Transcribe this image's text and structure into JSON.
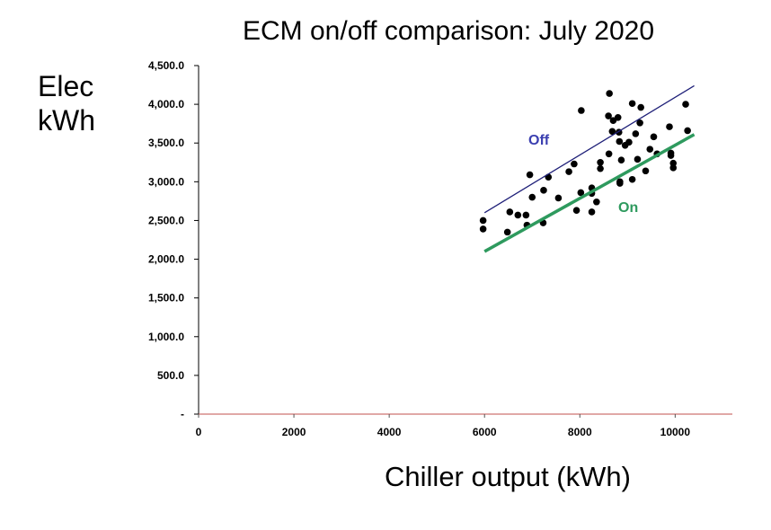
{
  "chart_data": {
    "type": "scatter",
    "title": "ECM on/off comparison: July 2020",
    "ylabel_lines": [
      "Elec",
      "kWh"
    ],
    "xlabel": "Chiller output (kWh)",
    "xlim": [
      0,
      11200
    ],
    "ylim": [
      0,
      4500
    ],
    "x_ticks": [
      0,
      2000,
      4000,
      6000,
      8000,
      10000
    ],
    "x_tick_labels": [
      "0",
      "2000",
      "4000",
      "6000",
      "8000",
      "10000"
    ],
    "y_ticks": [
      0,
      500,
      1000,
      1500,
      2000,
      2500,
      3000,
      3500,
      4000,
      4500
    ],
    "y_tick_labels": [
      "-",
      "500.0",
      "1,000.0",
      "1,500.0",
      "2,000.0",
      "2,500.0",
      "3,000.0",
      "3,500.0",
      "4,000.0",
      "4,500.0"
    ],
    "grid": false,
    "points": [
      [
        5970,
        2500
      ],
      [
        5970,
        2390
      ],
      [
        6480,
        2350
      ],
      [
        6530,
        2610
      ],
      [
        6700,
        2570
      ],
      [
        6870,
        2570
      ],
      [
        6890,
        2440
      ],
      [
        6950,
        3090
      ],
      [
        7000,
        2800
      ],
      [
        7230,
        2470
      ],
      [
        7240,
        2890
      ],
      [
        7340,
        3060
      ],
      [
        7550,
        2790
      ],
      [
        7770,
        3130
      ],
      [
        7880,
        3230
      ],
      [
        7930,
        2630
      ],
      [
        8020,
        2860
      ],
      [
        8030,
        3920
      ],
      [
        8250,
        2850
      ],
      [
        8250,
        2920
      ],
      [
        8250,
        2610
      ],
      [
        8350,
        2740
      ],
      [
        8430,
        3170
      ],
      [
        8430,
        3250
      ],
      [
        8600,
        3850
      ],
      [
        8610,
        3360
      ],
      [
        8620,
        4140
      ],
      [
        8680,
        3650
      ],
      [
        8700,
        3790
      ],
      [
        8800,
        3830
      ],
      [
        8820,
        3640
      ],
      [
        8830,
        3520
      ],
      [
        8840,
        2980
      ],
      [
        8840,
        3000
      ],
      [
        8870,
        3280
      ],
      [
        8950,
        3470
      ],
      [
        9030,
        3510
      ],
      [
        9100,
        4010
      ],
      [
        9100,
        3030
      ],
      [
        9170,
        3620
      ],
      [
        9210,
        3290
      ],
      [
        9260,
        3760
      ],
      [
        9280,
        3960
      ],
      [
        9380,
        3140
      ],
      [
        9470,
        3420
      ],
      [
        9550,
        3580
      ],
      [
        9620,
        3360
      ],
      [
        9880,
        3710
      ],
      [
        9910,
        3370
      ],
      [
        9910,
        3340
      ],
      [
        9960,
        3180
      ],
      [
        9960,
        3240
      ],
      [
        10220,
        4000
      ],
      [
        10260,
        3660
      ]
    ],
    "point_color": "#000000",
    "series": [
      {
        "name": "Off",
        "x": [
          6000,
          10400
        ],
        "y": [
          2600,
          4240
        ],
        "color": "#1e1f78"
      },
      {
        "name": "On",
        "x": [
          6000,
          10400
        ],
        "y": [
          2100,
          3610
        ],
        "color": "#2e9a5e"
      }
    ],
    "axis_color": "#000000",
    "x_axis_color": "#c0504d"
  }
}
